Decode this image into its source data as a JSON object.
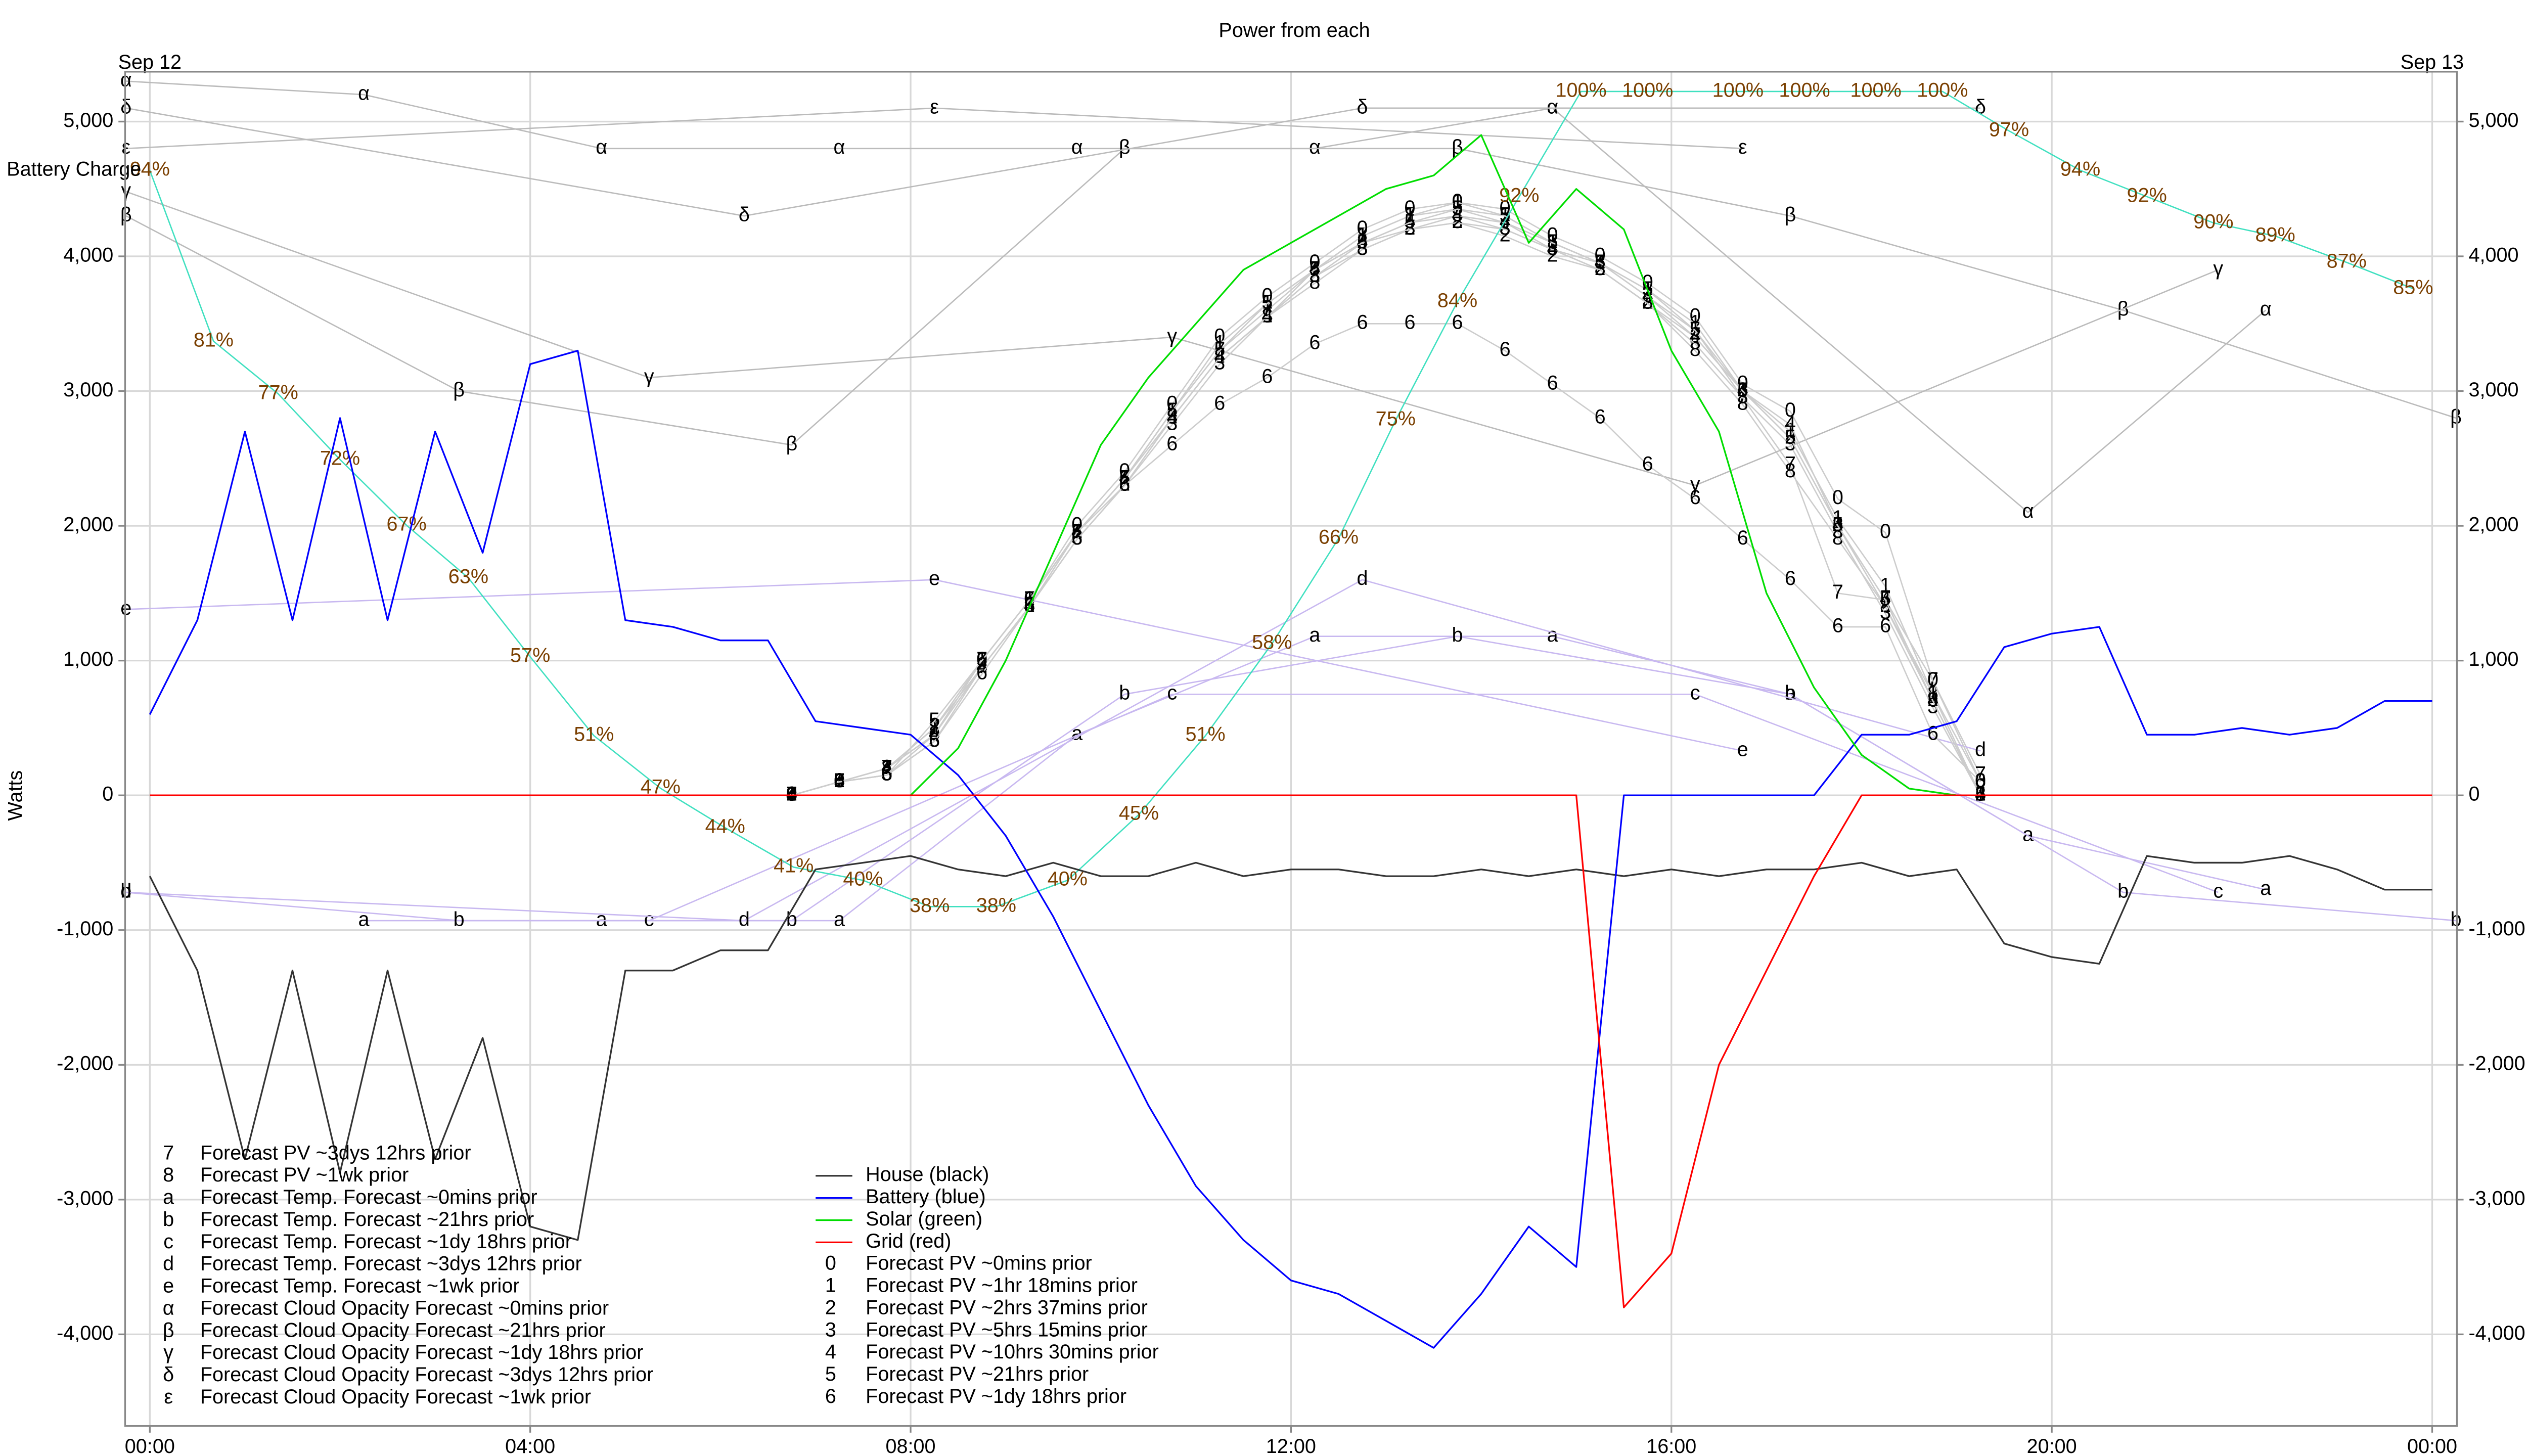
{
  "chart_data": {
    "type": "line",
    "title": "Power from each",
    "ylabel": "Watts",
    "xlim": [
      -0.26,
      24.26
    ],
    "xticks": [
      {
        "value": 0,
        "label": "00:00"
      },
      {
        "value": 4,
        "label": "04:00"
      },
      {
        "value": 8,
        "label": "08:00"
      },
      {
        "value": 12,
        "label": "12:00"
      },
      {
        "value": 16,
        "label": "16:00"
      },
      {
        "value": 20,
        "label": "20:00"
      },
      {
        "value": 24,
        "label": "00:00"
      }
    ],
    "date_labels": [
      {
        "value": 0,
        "label": "Sep 12"
      },
      {
        "value": 24,
        "label": "Sep 13"
      }
    ],
    "ylim": [
      -4680,
      5370
    ],
    "yticks": [
      {
        "value": -4000,
        "label": "-4,000"
      },
      {
        "value": -3000,
        "label": "-3,000"
      },
      {
        "value": -2000,
        "label": "-2,000"
      },
      {
        "value": -1000,
        "label": "-1,000"
      },
      0,
      {
        "value": 1000,
        "label": "1,000"
      },
      {
        "value": 2000,
        "label": "2,000"
      },
      {
        "value": 3000,
        "label": "3,000"
      },
      {
        "value": 4000,
        "label": "4,000"
      },
      {
        "value": 5000,
        "label": "5,000"
      }
    ],
    "grid": true,
    "x": [
      0,
      0.5,
      1,
      1.5,
      2,
      2.5,
      3,
      3.5,
      4,
      4.5,
      5,
      5.5,
      6,
      6.5,
      7,
      7.5,
      8,
      8.5,
      9,
      9.5,
      10,
      10.5,
      11,
      11.5,
      12,
      12.5,
      13,
      13.5,
      14,
      14.5,
      15,
      15.5,
      16,
      16.5,
      17,
      17.5,
      18,
      18.5,
      19,
      19.5,
      20,
      20.5,
      21,
      21.5,
      22,
      22.5,
      23,
      23.5,
      24
    ],
    "series": [
      {
        "name": "House (black)",
        "color": "#333333",
        "values": [
          -600,
          -1300,
          -2700,
          -1300,
          -2800,
          -1300,
          -2700,
          -1800,
          -3200,
          -3300,
          -1300,
          -1300,
          -1150,
          -1150,
          -550,
          -500,
          -450,
          -550,
          -600,
          -500,
          -600,
          -600,
          -500,
          -600,
          -550,
          -550,
          -600,
          -600,
          -550,
          -600,
          -550,
          -600,
          -550,
          -600,
          -550,
          -550,
          -500,
          -600,
          -550,
          -1100,
          -1200,
          -1250,
          -450,
          -500,
          -500,
          -450,
          -550,
          -700,
          -700
        ]
      },
      {
        "name": "Battery (blue)",
        "color": "#0000ff",
        "values": [
          600,
          1300,
          2700,
          1300,
          2800,
          1300,
          2700,
          1800,
          3200,
          3300,
          1300,
          1250,
          1150,
          1150,
          550,
          500,
          450,
          150,
          -300,
          -900,
          -1600,
          -2300,
          -2900,
          -3300,
          -3600,
          -3700,
          -3900,
          -4100,
          -3700,
          -3200,
          -3500,
          0,
          0,
          0,
          0,
          0,
          450,
          450,
          550,
          1100,
          1200,
          1250,
          450,
          450,
          500,
          450,
          500,
          700,
          700
        ]
      },
      {
        "name": "Solar (green)",
        "color": "#00dd00",
        "values": [
          0,
          0,
          0,
          0,
          0,
          0,
          0,
          0,
          0,
          0,
          0,
          0,
          0,
          0,
          0,
          0,
          0,
          350,
          1000,
          1800,
          2600,
          3100,
          3500,
          3900,
          4100,
          4300,
          4500,
          4600,
          4900,
          4100,
          4500,
          4200,
          3300,
          2700,
          1500,
          800,
          300,
          50,
          0,
          0,
          0,
          0,
          0,
          0,
          0,
          0,
          0,
          0,
          0
        ]
      },
      {
        "name": "Grid (red)",
        "color": "#ff0000",
        "values": [
          0,
          0,
          0,
          0,
          0,
          0,
          0,
          0,
          0,
          0,
          0,
          0,
          0,
          0,
          0,
          0,
          0,
          0,
          0,
          0,
          0,
          0,
          0,
          0,
          0,
          0,
          0,
          0,
          0,
          0,
          0,
          -3800,
          -3400,
          -2000,
          -1300,
          -600,
          0,
          0,
          0,
          0,
          0,
          0,
          0,
          0,
          0,
          0,
          0,
          0,
          0
        ]
      }
    ],
    "battery_charge": {
      "name": "Battery Charge",
      "color": "#40e0c0",
      "label_color": "#7a3f00",
      "ylim": [
        -1.5,
        101.5
      ],
      "x": [
        0,
        0.67,
        1.35,
        2,
        2.7,
        3.35,
        4,
        4.67,
        5.37,
        6.05,
        6.77,
        7.5,
        8.2,
        8.9,
        9.65,
        10.4,
        11.1,
        11.8,
        12.5,
        13.1,
        13.75,
        14.4,
        15.05,
        15.75,
        16.7,
        17.4,
        18.15,
        18.85,
        19.55,
        20.3,
        21,
        21.7,
        22.35,
        23.1,
        23.8
      ],
      "values": [
        94,
        81,
        77,
        72,
        67,
        63,
        57,
        51,
        47,
        44,
        41,
        40,
        38,
        38,
        40,
        45,
        51,
        58,
        66,
        75,
        84,
        92,
        100,
        100,
        100,
        100,
        100,
        100,
        97,
        94,
        92,
        90,
        89,
        87,
        85
      ],
      "value_labels": [
        "94%",
        "81%",
        "77%",
        "72%",
        "67%",
        "63%",
        "57%",
        "51%",
        "47%",
        "44%",
        "41%",
        "40%",
        "38%",
        "38%",
        "40%",
        "45%",
        "51%",
        "58%",
        "66%",
        "75%",
        "84%",
        "92%",
        "100%",
        "100%",
        "100%",
        "100%",
        "100%",
        "100%",
        "97%",
        "94%",
        "92%",
        "90%",
        "89%",
        "87%",
        "85%"
      ]
    },
    "forecasts": [
      {
        "name": "Forecast PV ~3dys 12hrs prior",
        "marker": "7",
        "color": "#cccccc",
        "x": [
          6.75,
          7.25,
          7.75,
          8.25,
          8.75,
          9.25,
          9.75,
          10.25,
          10.75,
          11.25,
          11.75,
          12.25,
          12.75,
          13.25,
          13.75,
          14.25,
          14.75,
          15.25,
          15.75,
          16.25,
          16.75,
          17.25,
          17.75,
          18.25,
          18.75,
          19.25
        ],
        "values": [
          0,
          100,
          200,
          500,
          1000,
          1450,
          1950,
          2350,
          2850,
          3300,
          3600,
          3900,
          4150,
          4300,
          4350,
          4250,
          4100,
          3950,
          3700,
          3450,
          2950,
          2450,
          1500,
          1450,
          850,
          150
        ]
      },
      {
        "name": "Forecast PV ~1wk prior",
        "marker": "8",
        "color": "#cccccc",
        "x": [
          6.75,
          7.25,
          7.75,
          8.25,
          8.75,
          9.25,
          9.75,
          10.25,
          10.75,
          11.25,
          11.75,
          12.25,
          12.75,
          13.25,
          13.75,
          14.25,
          14.75,
          15.25,
          15.75,
          16.25,
          16.75,
          17.25,
          17.75,
          18.25,
          18.75,
          19.25
        ],
        "values": [
          0,
          100,
          200,
          450,
          950,
          1400,
          1900,
          2300,
          2800,
          3250,
          3550,
          3800,
          4050,
          4200,
          4250,
          4200,
          4050,
          3900,
          3650,
          3300,
          2900,
          2400,
          1900,
          1400,
          750,
          100
        ]
      },
      {
        "name": "Forecast Temp. Forecast ~0mins prior",
        "marker": "a",
        "color": "#c8b8f0",
        "x": [
          2.25,
          4.75,
          7.25,
          9.75,
          12.25,
          14.75,
          17.25,
          19.75,
          22.25
        ],
        "values": [
          -930,
          -930,
          -930,
          450,
          1180,
          1180,
          750,
          -300,
          -700
        ]
      },
      {
        "name": "Forecast Temp. Forecast ~21hrs prior",
        "marker": "b",
        "color": "#c8b8f0",
        "x": [
          -0.25,
          3.25,
          6.75,
          10.25,
          13.75,
          17.25,
          20.75,
          24.25
        ],
        "values": [
          -720,
          -930,
          -930,
          750,
          1180,
          750,
          -720,
          -930
        ]
      },
      {
        "name": "Forecast Temp. Forecast ~1dy 18hrs prior",
        "marker": "c",
        "color": "#c8b8f0",
        "x": [
          5.25,
          10.75,
          16.25,
          21.75
        ],
        "values": [
          -930,
          750,
          750,
          -720
        ]
      },
      {
        "name": "Forecast Temp. Forecast ~3dys 12hrs prior",
        "marker": "d",
        "color": "#c8b8f0",
        "x": [
          -0.25,
          6.25,
          12.75,
          19.25
        ],
        "values": [
          -720,
          -930,
          1600,
          330
        ]
      },
      {
        "name": "Forecast Temp. Forecast ~1wk prior",
        "marker": "e",
        "color": "#c8b8f0",
        "x": [
          -0.25,
          8.25,
          16.75
        ],
        "values": [
          1380,
          1600,
          330
        ]
      },
      {
        "name": "Forecast Cloud Opacity Forecast ~0mins prior",
        "marker": "α",
        "color": "#bbbbbb",
        "x": [
          -0.25,
          2.25,
          4.75,
          7.25,
          9.75,
          12.25,
          14.75,
          19.75,
          22.25
        ],
        "values": [
          5300,
          5200,
          4800,
          4800,
          4800,
          4800,
          5100,
          2100,
          3600
        ]
      },
      {
        "name": "Forecast Cloud Opacity Forecast ~21hrs prior",
        "marker": "β",
        "color": "#bbbbbb",
        "x": [
          -0.25,
          3.25,
          6.75,
          10.25,
          13.75,
          17.25,
          20.75,
          24.25
        ],
        "values": [
          4300,
          3000,
          2600,
          4800,
          4800,
          4300,
          3600,
          2800
        ]
      },
      {
        "name": "Forecast Cloud Opacity Forecast ~1dy 18hrs prior",
        "marker": "γ",
        "color": "#bbbbbb",
        "x": [
          -0.25,
          5.25,
          10.75,
          16.25,
          21.75
        ],
        "values": [
          4480,
          3100,
          3400,
          2300,
          3900
        ]
      },
      {
        "name": "Forecast Cloud Opacity Forecast ~3dys 12hrs prior",
        "marker": "δ",
        "color": "#bbbbbb",
        "x": [
          -0.25,
          6.25,
          12.75,
          19.25
        ],
        "values": [
          5100,
          4300,
          5100,
          5100
        ]
      },
      {
        "name": "Forecast Cloud Opacity Forecast ~1wk prior",
        "marker": "ε",
        "color": "#bbbbbb",
        "x": [
          -0.25,
          8.25,
          16.75
        ],
        "values": [
          4800,
          5100,
          4800
        ]
      },
      {
        "name": "Forecast PV ~0mins prior",
        "marker": "0",
        "color": "#cccccc",
        "x": [
          6.75,
          7.25,
          7.75,
          8.25,
          8.75,
          9.25,
          9.75,
          10.25,
          10.75,
          11.25,
          11.75,
          12.25,
          12.75,
          13.25,
          13.75,
          14.25,
          14.75,
          15.25,
          15.75,
          16.25,
          16.75,
          17.25,
          17.75,
          18.25,
          18.75,
          19.25
        ],
        "values": [
          0,
          100,
          150,
          450,
          1000,
          1450,
          2000,
          2400,
          2900,
          3400,
          3700,
          3950,
          4200,
          4350,
          4400,
          4350,
          4150,
          4000,
          3800,
          3550,
          3050,
          2850,
          2200,
          1950,
          850,
          100
        ]
      },
      {
        "name": "Forecast PV ~1hr 18mins prior",
        "marker": "1",
        "color": "#cccccc",
        "x": [
          6.75,
          7.25,
          7.75,
          8.25,
          8.75,
          9.25,
          9.75,
          10.25,
          10.75,
          11.25,
          11.75,
          12.25,
          12.75,
          13.25,
          13.75,
          14.25,
          14.75,
          15.25,
          15.75,
          16.25,
          16.75,
          17.25,
          17.75,
          18.25,
          18.75,
          19.25
        ],
        "values": [
          0,
          100,
          200,
          500,
          1000,
          1450,
          1950,
          2350,
          2850,
          3350,
          3650,
          3900,
          4150,
          4300,
          4400,
          4300,
          4100,
          3950,
          3750,
          3500,
          3000,
          2700,
          2050,
          1550,
          750,
          0
        ]
      },
      {
        "name": "Forecast PV ~2hrs 37mins prior",
        "marker": "2",
        "color": "#cccccc",
        "x": [
          6.75,
          7.25,
          7.75,
          8.25,
          8.75,
          9.25,
          9.75,
          10.25,
          10.75,
          11.25,
          11.75,
          12.25,
          12.75,
          13.25,
          13.75,
          14.25,
          14.75,
          15.25,
          15.75,
          16.25,
          16.75,
          17.25,
          17.75,
          18.25,
          18.75,
          19.25
        ],
        "values": [
          0,
          100,
          200,
          500,
          950,
          1400,
          1950,
          2300,
          2800,
          3250,
          3550,
          3850,
          4100,
          4200,
          4250,
          4150,
          4000,
          3900,
          3650,
          3400,
          3000,
          2650,
          2000,
          1400,
          700,
          0
        ]
      },
      {
        "name": "Forecast PV ~5hrs 15mins prior",
        "marker": "3",
        "color": "#cccccc",
        "x": [
          6.75,
          7.25,
          7.75,
          8.25,
          8.75,
          9.25,
          9.75,
          10.25,
          10.75,
          11.25,
          11.75,
          12.25,
          12.75,
          13.25,
          13.75,
          14.25,
          14.75,
          15.25,
          15.75,
          16.25,
          16.75,
          17.25,
          17.75,
          18.25,
          18.75,
          19.25
        ],
        "values": [
          0,
          100,
          150,
          400,
          950,
          1400,
          1900,
          2300,
          2750,
          3200,
          3550,
          3850,
          4050,
          4200,
          4300,
          4200,
          4050,
          3900,
          3650,
          3350,
          2950,
          2600,
          1950,
          1350,
          650,
          0
        ]
      },
      {
        "name": "Forecast PV ~10hrs 30mins prior",
        "marker": "4",
        "color": "#cccccc",
        "x": [
          6.75,
          7.25,
          7.75,
          8.25,
          8.75,
          9.25,
          9.75,
          10.25,
          10.75,
          11.25,
          11.75,
          12.25,
          12.75,
          13.25,
          13.75,
          14.25,
          14.75,
          15.25,
          15.75,
          16.25,
          16.75,
          17.25,
          17.75,
          18.25,
          18.75,
          19.25
        ],
        "values": [
          0,
          100,
          200,
          450,
          950,
          1400,
          1950,
          2350,
          2800,
          3250,
          3550,
          3900,
          4100,
          4250,
          4300,
          4250,
          4050,
          3950,
          3700,
          3400,
          3000,
          2750,
          2000,
          1450,
          700,
          0
        ]
      },
      {
        "name": "Forecast PV ~21hrs prior",
        "marker": "5",
        "color": "#cccccc",
        "x": [
          6.75,
          7.25,
          7.75,
          8.25,
          8.75,
          9.25,
          9.75,
          10.25,
          10.75,
          11.25,
          11.75,
          12.25,
          12.75,
          13.25,
          13.75,
          14.25,
          14.75,
          15.25,
          15.75,
          16.25,
          16.75,
          17.25,
          17.75,
          18.25,
          18.75,
          19.25
        ],
        "values": [
          0,
          100,
          150,
          550,
          1000,
          1450,
          1950,
          2350,
          2850,
          3300,
          3650,
          3900,
          4100,
          4250,
          4350,
          4300,
          4100,
          3950,
          3750,
          3450,
          3000,
          2650,
          2000,
          1450,
          700,
          0
        ]
      },
      {
        "name": "Forecast PV ~1dy 18hrs prior",
        "marker": "6",
        "color": "#cccccc",
        "x": [
          6.75,
          7.25,
          7.75,
          8.25,
          8.75,
          9.25,
          9.75,
          10.25,
          10.75,
          11.25,
          11.75,
          12.25,
          12.75,
          13.25,
          13.75,
          14.25,
          14.75,
          15.25,
          15.75,
          16.25,
          16.75,
          17.25,
          17.75,
          18.25,
          18.75,
          19.25
        ],
        "values": [
          0,
          100,
          150,
          400,
          900,
          1400,
          1900,
          2300,
          2600,
          2900,
          3100,
          3350,
          3500,
          3500,
          3500,
          3300,
          3050,
          2800,
          2450,
          2200,
          1900,
          1600,
          1250,
          1250,
          450,
          100
        ]
      }
    ]
  }
}
